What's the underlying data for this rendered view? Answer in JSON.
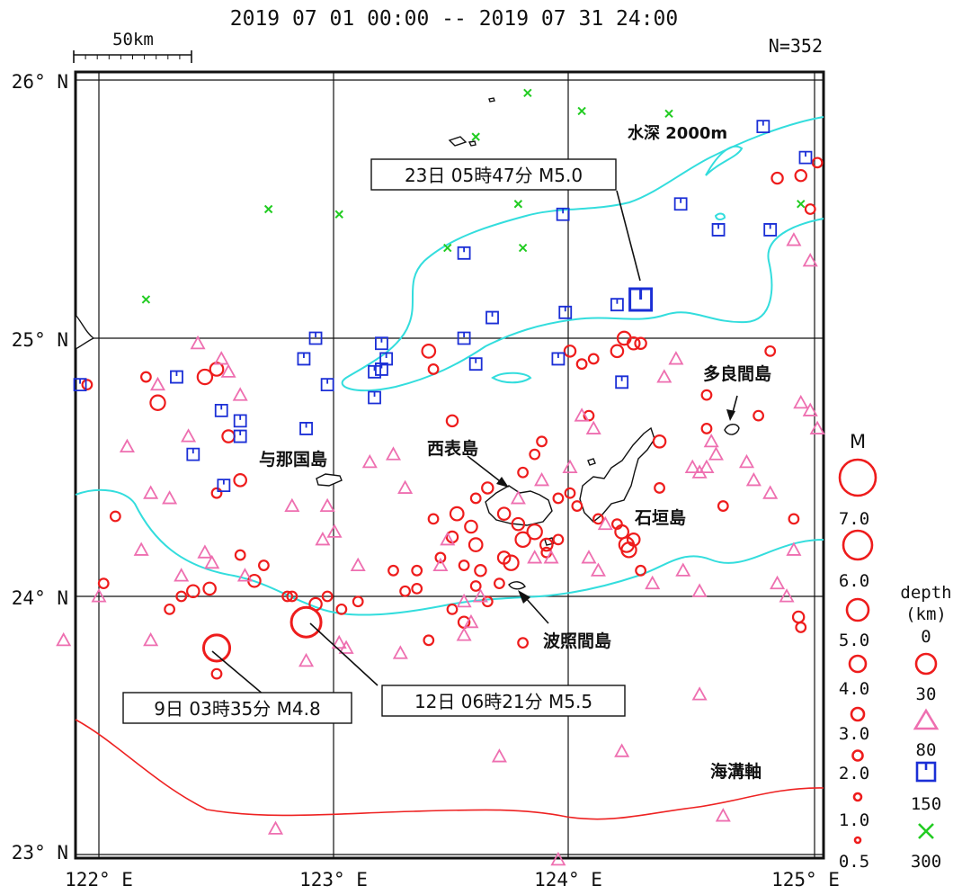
{
  "header": {
    "period": "2019 07 01 00:00 -- 2019 07 31 24:00",
    "count": "N=352",
    "scale_label": "50km"
  },
  "axes": {
    "lat_labels": [
      "26° N",
      "25° N",
      "24° N",
      "23° N"
    ],
    "lon_labels": [
      "122° E",
      "123° E",
      "124° E",
      "125° E"
    ]
  },
  "place_labels": {
    "yonaguni": "与那国島",
    "iriomote": "西表島",
    "ishigaki": "石垣島",
    "tarama": "多良間島",
    "hateruma": "波照間島",
    "depth_contour": "水深 2000m",
    "trench": "海溝軸"
  },
  "callouts": {
    "c23": "23日 05時47分 M5.0",
    "c12": "12日 06時21分 M5.5",
    "c9": "9日 03時35分 M4.8"
  },
  "legend": {
    "mag_title": "M",
    "mag_labels": [
      "7.0",
      "6.0",
      "5.0",
      "4.0",
      "3.0",
      "2.0",
      "1.0",
      "0.5"
    ],
    "depth_title": "depth",
    "depth_unit": "(km)",
    "depth_labels": [
      "0",
      "30",
      "80",
      "150",
      "300"
    ]
  },
  "colors": {
    "shallow": "#ee1c1c",
    "d30": "#ee6fb0",
    "d80": "#1b2fd6",
    "d150": "#22cc22",
    "contour": "#33dddd",
    "trench": "#ee2222"
  },
  "chart_data": {
    "type": "scatter",
    "x_axis": "longitude",
    "y_axis": "latitude",
    "xlim": [
      122,
      125
    ],
    "ylim": [
      23,
      26
    ],
    "highlighted_events": [
      {
        "day": 23,
        "time": "05:47",
        "mag": 5.0,
        "lon": 124.3,
        "lat": 25.15,
        "depth_class": "80-150"
      },
      {
        "day": 12,
        "time": "06:21",
        "mag": 5.5,
        "lon": 122.88,
        "lat": 23.9,
        "depth_class": "0-30"
      },
      {
        "day": 9,
        "time": "03:35",
        "mag": 4.8,
        "lon": 122.5,
        "lat": 23.8,
        "depth_class": "0-30"
      }
    ],
    "events": {
      "shallow": [
        [
          121.95,
          24.82,
          1.5
        ],
        [
          122.07,
          24.31,
          1.5
        ],
        [
          122.02,
          24.05,
          1.5
        ],
        [
          122.3,
          23.95,
          1.5
        ],
        [
          122.25,
          24.75,
          2.5
        ],
        [
          122.45,
          24.85,
          2.5
        ],
        [
          122.5,
          24.88,
          2.2
        ],
        [
          122.55,
          24.62,
          2
        ],
        [
          122.6,
          24.45,
          2
        ],
        [
          122.5,
          24.4,
          1.5
        ],
        [
          122.4,
          24.02,
          2
        ],
        [
          122.47,
          24.03,
          2
        ],
        [
          122.6,
          24.16,
          1.5
        ],
        [
          122.7,
          24.12,
          1.5
        ],
        [
          122.8,
          24.0,
          1.5
        ],
        [
          122.92,
          23.97,
          2
        ],
        [
          122.97,
          24.0,
          1.5
        ],
        [
          123.03,
          23.95,
          1.5
        ],
        [
          122.5,
          23.7,
          1.5
        ],
        [
          122.82,
          24.0,
          1.5
        ],
        [
          122.66,
          24.06,
          2
        ],
        [
          123.1,
          23.98,
          1.5
        ],
        [
          122.35,
          24.0,
          1.5
        ],
        [
          123.25,
          24.1,
          1.5
        ],
        [
          123.35,
          24.03,
          1.5
        ],
        [
          123.4,
          23.83,
          1.5
        ],
        [
          123.45,
          24.15,
          1.5
        ],
        [
          123.5,
          24.23,
          1.8
        ],
        [
          123.52,
          24.32,
          2.2
        ],
        [
          123.58,
          24.27,
          2
        ],
        [
          123.6,
          24.2,
          2.2
        ],
        [
          123.55,
          24.12,
          1.5
        ],
        [
          123.62,
          24.1,
          1.8
        ],
        [
          123.6,
          24.04,
          1.5
        ],
        [
          123.5,
          23.95,
          1.5
        ],
        [
          123.55,
          23.9,
          1.8
        ],
        [
          123.65,
          23.98,
          1.5
        ],
        [
          123.7,
          24.05,
          1.5
        ],
        [
          123.72,
          24.15,
          2
        ],
        [
          123.75,
          24.13,
          2.5
        ],
        [
          123.8,
          24.22,
          2.5
        ],
        [
          123.85,
          24.25,
          2.5
        ],
        [
          123.9,
          24.2,
          2
        ],
        [
          123.9,
          24.17,
          1.5
        ],
        [
          123.95,
          24.22,
          1.5
        ],
        [
          123.72,
          24.32,
          2
        ],
        [
          123.78,
          24.28,
          2
        ],
        [
          123.6,
          24.38,
          1.5
        ],
        [
          123.65,
          24.42,
          1.8
        ],
        [
          123.8,
          24.48,
          1.5
        ],
        [
          123.85,
          24.55,
          1.5
        ],
        [
          123.88,
          24.6,
          1.5
        ],
        [
          123.95,
          24.38,
          1.5
        ],
        [
          124.0,
          24.4,
          1.5
        ],
        [
          124.03,
          24.35,
          1.5
        ],
        [
          124.22,
          24.25,
          2.2
        ],
        [
          124.24,
          24.2,
          2.5
        ],
        [
          124.25,
          24.18,
          2.5
        ],
        [
          124.27,
          24.22,
          2
        ],
        [
          124.2,
          24.28,
          1.5
        ],
        [
          124.3,
          24.1,
          1.5
        ],
        [
          124.38,
          24.6,
          2
        ],
        [
          124.38,
          24.42,
          1.5
        ],
        [
          124.2,
          24.95,
          2
        ],
        [
          124.23,
          25.0,
          2.2
        ],
        [
          124.27,
          24.98,
          2
        ],
        [
          124.3,
          24.98,
          1.8
        ],
        [
          124.0,
          24.95,
          1.8
        ],
        [
          124.05,
          24.9,
          1.5
        ],
        [
          124.1,
          24.92,
          1.5
        ],
        [
          123.4,
          24.95,
          2.2
        ],
        [
          123.42,
          24.88,
          1.5
        ],
        [
          124.88,
          25.62,
          1.8
        ],
        [
          124.98,
          25.63,
          1.8
        ],
        [
          125.02,
          25.5,
          1.5
        ],
        [
          125.05,
          25.68,
          1.5
        ],
        [
          124.97,
          23.92,
          1.8
        ],
        [
          124.98,
          23.88,
          1.5
        ],
        [
          124.95,
          24.3,
          1.5
        ],
        [
          124.85,
          24.95,
          1.5
        ],
        [
          124.8,
          24.7,
          1.5
        ],
        [
          124.58,
          24.78,
          1.5
        ],
        [
          124.58,
          24.65,
          1.5
        ],
        [
          124.65,
          24.35,
          1.5
        ],
        [
          123.5,
          24.68,
          1.8
        ],
        [
          123.35,
          24.1,
          1.5
        ],
        [
          123.3,
          24.02,
          1.5
        ],
        [
          123.42,
          24.3,
          1.5
        ],
        [
          124.08,
          24.7,
          1.5
        ],
        [
          124.12,
          24.3,
          1.5
        ],
        [
          123.8,
          23.82,
          1.5
        ],
        [
          122.2,
          24.85,
          1.5
        ]
      ],
      "d30": [
        [
          121.85,
          23.83
        ],
        [
          122.0,
          24.0
        ],
        [
          122.12,
          24.58
        ],
        [
          122.18,
          24.18
        ],
        [
          122.22,
          24.4
        ],
        [
          122.25,
          24.82
        ],
        [
          122.3,
          24.38
        ],
        [
          122.35,
          24.08
        ],
        [
          122.38,
          24.62
        ],
        [
          122.42,
          24.98
        ],
        [
          122.45,
          24.17
        ],
        [
          122.48,
          24.13
        ],
        [
          122.52,
          24.92
        ],
        [
          122.55,
          24.87
        ],
        [
          122.6,
          24.78
        ],
        [
          122.62,
          24.08
        ],
        [
          122.22,
          23.83
        ],
        [
          122.82,
          24.35
        ],
        [
          122.95,
          24.22
        ],
        [
          122.97,
          24.35
        ],
        [
          123.0,
          24.25
        ],
        [
          123.02,
          23.82
        ],
        [
          122.88,
          23.75
        ],
        [
          123.1,
          24.12
        ],
        [
          123.05,
          23.8
        ],
        [
          123.15,
          24.52
        ],
        [
          123.25,
          24.55
        ],
        [
          123.3,
          24.42
        ],
        [
          123.45,
          24.12
        ],
        [
          123.48,
          24.22
        ],
        [
          123.55,
          23.98
        ],
        [
          123.62,
          24.0
        ],
        [
          123.28,
          23.78
        ],
        [
          123.55,
          23.85
        ],
        [
          123.58,
          23.9
        ],
        [
          124.0,
          24.5
        ],
        [
          124.08,
          24.15
        ],
        [
          124.12,
          24.1
        ],
        [
          124.15,
          24.28
        ],
        [
          124.05,
          24.7
        ],
        [
          124.1,
          24.65
        ],
        [
          124.4,
          24.85
        ],
        [
          124.45,
          24.92
        ],
        [
          124.52,
          24.5
        ],
        [
          124.55,
          24.48
        ],
        [
          124.58,
          24.5
        ],
        [
          124.6,
          24.6
        ],
        [
          124.62,
          24.55
        ],
        [
          124.75,
          24.52
        ],
        [
          124.78,
          24.45
        ],
        [
          124.85,
          24.4
        ],
        [
          124.88,
          24.05
        ],
        [
          124.92,
          24.0
        ],
        [
          124.95,
          24.18
        ],
        [
          124.98,
          24.75
        ],
        [
          125.02,
          24.72
        ],
        [
          125.05,
          24.65
        ],
        [
          125.02,
          25.3
        ],
        [
          124.95,
          25.38
        ],
        [
          123.7,
          23.38
        ],
        [
          124.55,
          23.62
        ],
        [
          124.65,
          23.15
        ],
        [
          124.22,
          23.4
        ],
        [
          122.75,
          23.1
        ],
        [
          123.95,
          22.98
        ],
        [
          123.85,
          24.15
        ],
        [
          123.78,
          24.38
        ],
        [
          123.88,
          24.45
        ],
        [
          123.92,
          24.15
        ],
        [
          124.35,
          24.05
        ],
        [
          124.48,
          24.1
        ],
        [
          124.55,
          24.02
        ]
      ],
      "d80": [
        [
          121.92,
          24.82
        ],
        [
          122.33,
          24.85
        ],
        [
          122.4,
          24.55
        ],
        [
          122.52,
          24.72
        ],
        [
          122.6,
          24.68
        ],
        [
          122.6,
          24.62
        ],
        [
          122.53,
          24.43
        ],
        [
          122.97,
          24.82
        ],
        [
          122.87,
          24.92
        ],
        [
          122.92,
          25.0
        ],
        [
          122.88,
          24.65
        ],
        [
          123.17,
          24.87
        ],
        [
          123.2,
          24.88
        ],
        [
          123.17,
          24.77
        ],
        [
          123.22,
          24.92
        ],
        [
          123.2,
          24.98
        ],
        [
          123.55,
          25.0
        ],
        [
          123.6,
          24.9
        ],
        [
          123.67,
          25.08
        ],
        [
          123.55,
          25.33
        ],
        [
          123.95,
          24.92
        ],
        [
          123.98,
          25.1
        ],
        [
          123.97,
          25.48
        ],
        [
          124.2,
          25.13
        ],
        [
          124.22,
          24.83
        ],
        [
          124.47,
          25.52
        ],
        [
          124.63,
          25.42
        ],
        [
          124.82,
          25.82
        ],
        [
          124.85,
          25.42
        ],
        [
          125.0,
          25.7
        ]
      ],
      "d150": [
        [
          122.2,
          25.15
        ],
        [
          122.72,
          25.5
        ],
        [
          123.02,
          25.48
        ],
        [
          123.48,
          25.35
        ],
        [
          123.6,
          25.78
        ],
        [
          123.78,
          25.52
        ],
        [
          123.8,
          25.35
        ],
        [
          123.82,
          25.95
        ],
        [
          124.05,
          25.88
        ],
        [
          124.42,
          25.87
        ],
        [
          124.98,
          25.52
        ]
      ]
    }
  }
}
